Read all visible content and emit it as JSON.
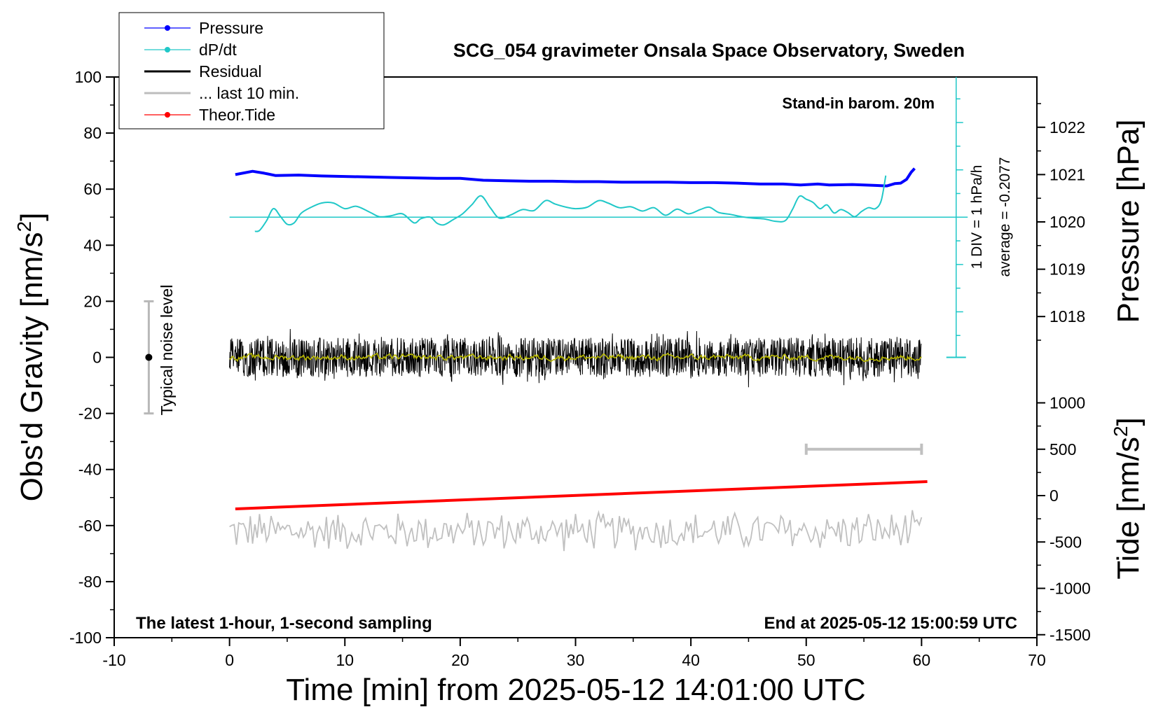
{
  "chart_data": {
    "type": "line",
    "title": "SCG_054 gravimeter Onsala Space Observatory, Sweden",
    "subtitle_left": "The latest 1-hour, 1-second sampling",
    "subtitle_right": "End at 2025-05-12 15:00:59 UTC",
    "annotation_top_right": "Stand-in barom. 20m",
    "xlabel": "Time [min] from 2025-05-12 14:01:00 UTC",
    "ylabel_left": "Obs'd Gravity [nm/s",
    "ylabel_left_exp": "2",
    "ylabel_left_close": "]",
    "ylabel_right_top": "Pressure [hPa]",
    "ylabel_right_bottom": "Tide [nm/s",
    "ylabel_right_bottom_exp": "2",
    "ylabel_right_bottom_close": "]",
    "xlim": [
      -10,
      70
    ],
    "ylim": [
      -100,
      100
    ],
    "x_ticks": [
      -10,
      0,
      10,
      20,
      30,
      40,
      50,
      60,
      70
    ],
    "y_ticks": [
      100,
      80,
      60,
      40,
      20,
      0,
      -20,
      -40,
      -60,
      -80,
      -100
    ],
    "pressure_ticks": [
      1022,
      1021,
      1020,
      1019,
      1018
    ],
    "tide_ticks": [
      1000,
      500,
      0,
      -500,
      -1000,
      -1500
    ],
    "noise_label": "Typical noise level",
    "dpdt_scale_label": "1 DIV = 1 hPa/h",
    "dpdt_average_label": "average = -0.2077",
    "legend": {
      "position": "top-left",
      "entries": [
        {
          "label": "Pressure",
          "color": "#0000ff",
          "marker": "dot"
        },
        {
          "label": "dP/dt",
          "color": "#20c8c8",
          "marker": "dot"
        },
        {
          "label": "Residual",
          "color": "#000000",
          "marker": "none"
        },
        {
          "label": "... last 10 min.",
          "color": "#bdbdbd",
          "marker": "none"
        },
        {
          "label": "Theor.Tide",
          "color": "#ff0000",
          "marker": "dot"
        }
      ]
    },
    "series": [
      {
        "name": "Pressure",
        "unit": "hPa",
        "color": "#0000ff",
        "x": [
          0.5,
          2,
          3,
          4,
          6,
          8,
          10,
          12,
          14,
          16,
          18,
          20,
          22,
          24,
          26,
          28,
          30,
          32,
          34,
          36,
          38,
          40,
          42,
          44,
          46,
          48,
          49.5,
          51,
          52,
          54,
          56,
          57,
          57.7,
          58.2,
          58.7,
          59.1,
          59.4
        ],
        "values": [
          1021.0,
          1021.07,
          1021.03,
          1020.98,
          1020.99,
          1020.97,
          1020.96,
          1020.95,
          1020.94,
          1020.93,
          1020.92,
          1020.92,
          1020.88,
          1020.87,
          1020.86,
          1020.86,
          1020.85,
          1020.85,
          1020.84,
          1020.84,
          1020.84,
          1020.83,
          1020.83,
          1020.82,
          1020.8,
          1020.8,
          1020.78,
          1020.8,
          1020.78,
          1020.79,
          1020.77,
          1020.76,
          1020.81,
          1020.82,
          1020.9,
          1021.05,
          1021.13
        ]
      },
      {
        "name": "dP/dt",
        "unit": "hPa/h (1 DIV = 1 hPa/h, centered on average = -0.2077)",
        "color": "#20c8c8",
        "x": [
          2.2,
          2.6,
          3.2,
          3.8,
          4.4,
          5.0,
          5.6,
          6.2,
          7.0,
          8.0,
          9.0,
          10.0,
          11.0,
          12.2,
          13.0,
          14.0,
          15.0,
          16.0,
          16.6,
          17.4,
          18.0,
          18.6,
          19.4,
          20.2,
          21.0,
          21.8,
          22.6,
          23.4,
          24.4,
          25.4,
          26.4,
          27.4,
          28.2,
          29.2,
          30.0,
          31.0,
          32.0,
          32.8,
          33.8,
          34.8,
          35.8,
          36.8,
          37.8,
          38.8,
          39.8,
          40.8,
          41.6,
          42.4,
          43.4,
          44.4,
          45.4,
          46.4,
          47.4,
          48.2,
          48.8,
          49.4,
          50.0,
          50.6,
          51.2,
          51.8,
          52.4,
          53.0,
          53.6,
          54.2,
          54.8,
          55.4,
          56.0,
          56.5,
          56.9
        ],
        "values": [
          -0.2,
          -0.18,
          0.02,
          0.28,
          0.12,
          -0.05,
          -0.02,
          0.18,
          0.3,
          0.4,
          0.4,
          0.28,
          0.33,
          0.2,
          0.11,
          0.13,
          0.17,
          -0.02,
          0.07,
          0.1,
          -0.03,
          -0.06,
          0.05,
          0.17,
          0.36,
          0.55,
          0.3,
          0.08,
          0.15,
          0.26,
          0.24,
          0.45,
          0.38,
          0.31,
          0.28,
          0.31,
          0.45,
          0.4,
          0.3,
          0.32,
          0.23,
          0.3,
          0.14,
          0.27,
          0.17,
          0.26,
          0.31,
          0.2,
          0.16,
          0.11,
          0.08,
          0.06,
          0.01,
          0.03,
          0.26,
          0.54,
          0.48,
          0.41,
          0.28,
          0.36,
          0.19,
          0.26,
          0.2,
          0.11,
          0.22,
          0.3,
          0.28,
          0.45,
          0.98
        ]
      },
      {
        "name": "Residual",
        "unit": "nm/s2",
        "color": "#000000",
        "x_range": [
          0,
          60
        ],
        "amplitude_range": [
          -11,
          11
        ],
        "note": "1-second noise around 0"
      },
      {
        "name": "Residual (smoothed)",
        "unit": "nm/s2",
        "color": "#b8b800",
        "x_range": [
          0,
          60
        ],
        "amplitude_range": [
          -2,
          2
        ]
      },
      {
        "name": "... last 10 min.",
        "unit": "nm/s2 (offset to -62)",
        "color": "#bdbdbd",
        "x_range": [
          0,
          60
        ],
        "amplitude_range": [
          -70,
          -53
        ]
      },
      {
        "name": "Theor.Tide",
        "unit": "nm/s2 (tide axis)",
        "color": "#ff0000",
        "x": [
          0.5,
          60.5
        ],
        "values": [
          -143,
          151
        ]
      }
    ],
    "noise_bar": {
      "x": -7,
      "ymin": -20,
      "ymax": 20
    },
    "grey_range_bar": {
      "x_start": 50,
      "x_end": 60,
      "tide_value": 500
    }
  }
}
